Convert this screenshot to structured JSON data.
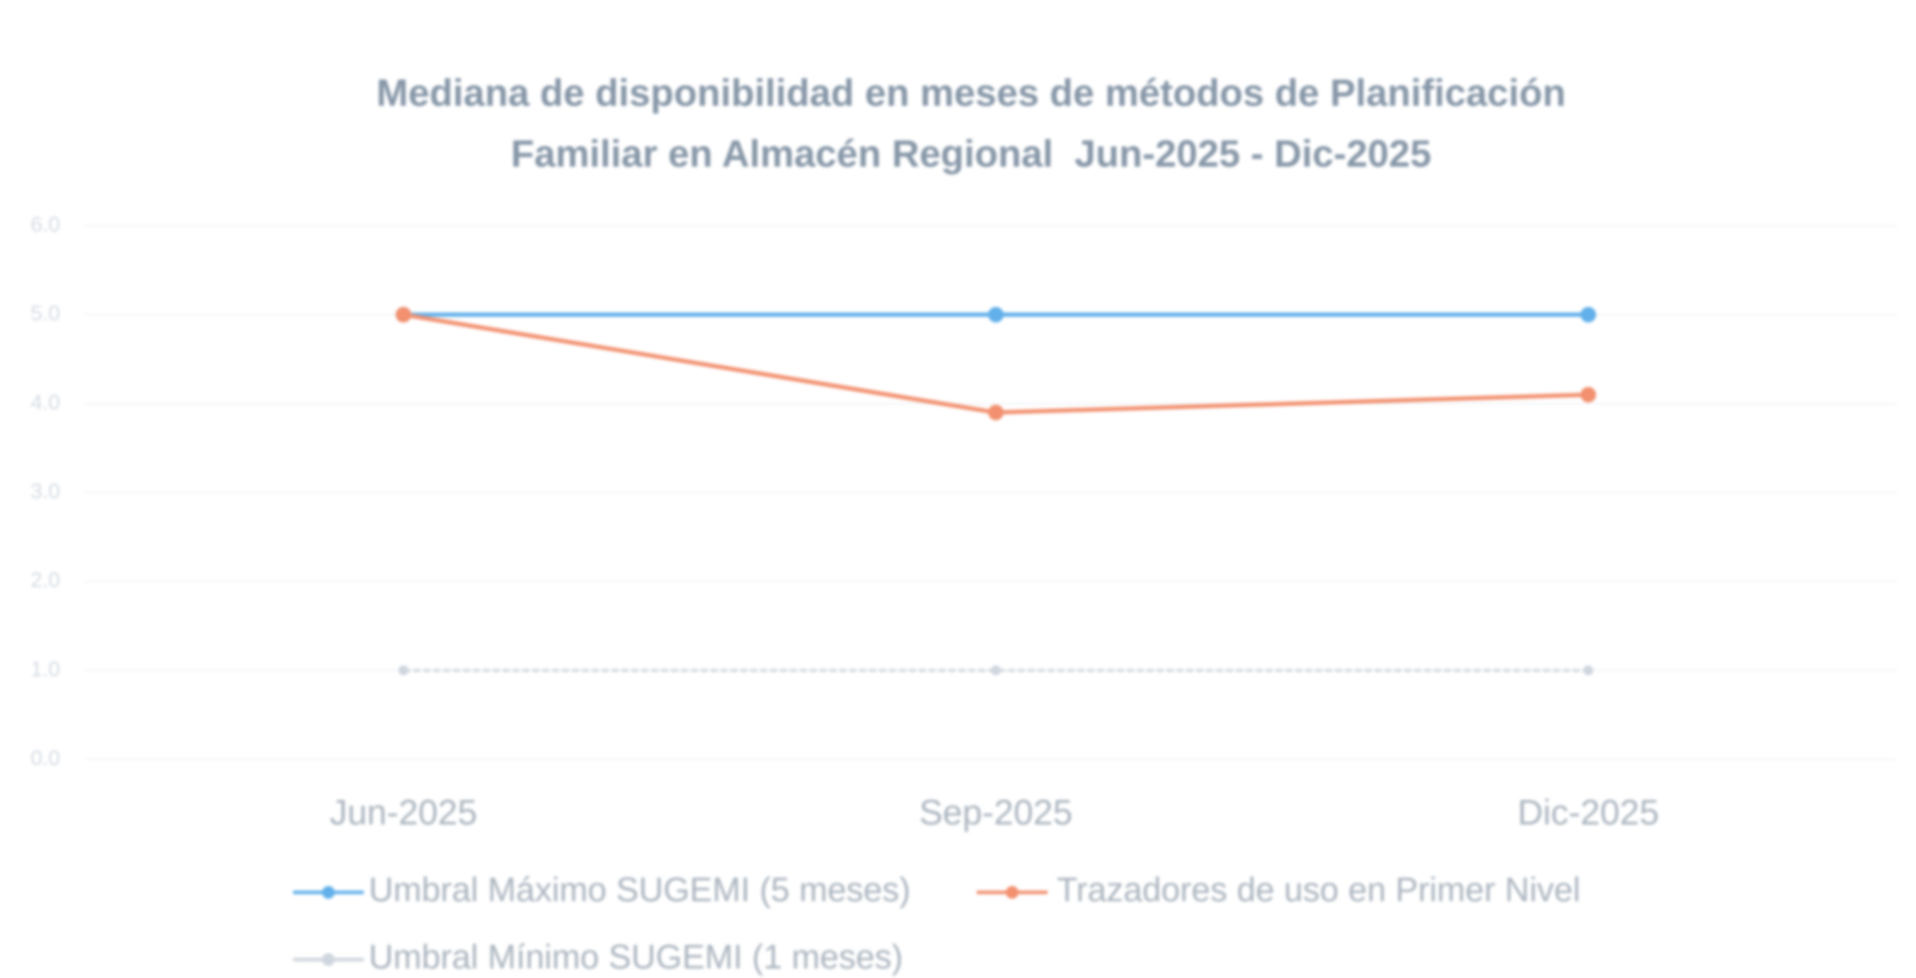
{
  "chart_data": {
    "type": "line",
    "title": [
      "Mediana de disponibilidad en meses de métodos de Planificación",
      "Familiar en Almacén Regional  Jun-2025 - Dic-2025"
    ],
    "categories": [
      "Jun-2025",
      "Sep-2025",
      "Dic-2025"
    ],
    "series": [
      {
        "name": "Umbral Máximo SUGEMI (5 meses)",
        "color": "#62b0ea",
        "values": [
          5,
          5,
          5
        ]
      },
      {
        "name": "Trazadores de uso en Primer Nivel",
        "color": "#f2906f",
        "values": [
          5,
          3.9,
          4.1
        ]
      },
      {
        "name": "Umbral Mínimo SUGEMI (1 meses)",
        "color": "#cfd6de",
        "values": [
          1,
          1,
          1
        ]
      }
    ],
    "ylim": [
      0,
      6
    ],
    "yticks": [
      {
        "value": 0,
        "label": "0.0"
      },
      {
        "value": 1,
        "label": "1.0"
      },
      {
        "value": 2,
        "label": "2.0"
      },
      {
        "value": 3,
        "label": "3.0"
      },
      {
        "value": 4,
        "label": "4.0"
      },
      {
        "value": 5,
        "label": "5.0"
      },
      {
        "value": 6,
        "label": "6.0"
      }
    ],
    "grid": true
  }
}
